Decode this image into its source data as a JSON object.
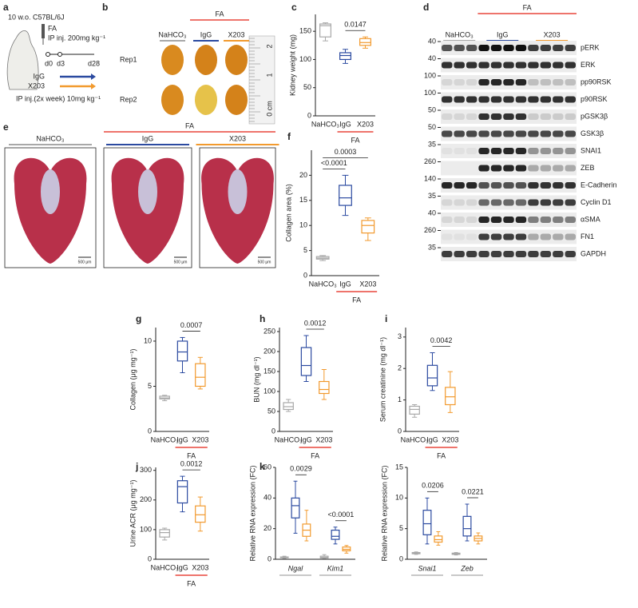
{
  "panel_a": {
    "label": "a",
    "strain": "10 w.o. C57BL/6J",
    "agent": "FA",
    "injection": "IP inj. 200mg kg⁻¹",
    "days": [
      "d0",
      "d3",
      "d28"
    ],
    "treatments": [
      "IgG",
      "X203"
    ],
    "treatment_dose": "IP inj.(2x week) 10mg kg⁻¹"
  },
  "panel_b": {
    "label": "b",
    "groups": [
      "NaHCO₃",
      "IgG",
      "X203"
    ],
    "group_label": "FA",
    "rows": [
      "Rep1",
      "Rep2"
    ],
    "ruler": [
      "2",
      "1",
      "0 cm"
    ]
  },
  "panel_d": {
    "label": "d",
    "groups": [
      "NaHCO₃",
      "IgG",
      "X203"
    ],
    "group_label": "FA",
    "bands": [
      {
        "name": "pERK",
        "mw": 40
      },
      {
        "name": "ERK",
        "mw": 40
      },
      {
        "name": "pp90RSK",
        "mw": 100
      },
      {
        "name": "p90RSK",
        "mw": 100
      },
      {
        "name": "pGSK3β",
        "mw": 50
      },
      {
        "name": "GSK3β",
        "mw": 50
      },
      {
        "name": "SNAI1",
        "mw": 35
      },
      {
        "name": "ZEB",
        "mw": 260
      },
      {
        "name": "E-Cadherin",
        "mw": 140
      },
      {
        "name": "Cyclin D1",
        "mw": 35
      },
      {
        "name": "αSMA",
        "mw": 40
      },
      {
        "name": "FN1",
        "mw": 260
      },
      {
        "name": "GAPDH",
        "mw": 35
      }
    ]
  },
  "panel_e": {
    "label": "e",
    "groups": [
      "NaHCO₃",
      "IgG",
      "X203"
    ],
    "group_label": "FA",
    "scale_bar": "500 μm"
  },
  "chart_data": [
    {
      "type": "box",
      "panel": "c",
      "ylabel": "Kidney weight (mg)",
      "ylim": [
        0,
        180
      ],
      "yticks": [
        0,
        50,
        100,
        150
      ],
      "categories": [
        "NaHCO₃",
        "IgG",
        "X203"
      ],
      "colors": [
        "#a8a8a8",
        "#2b4aa0",
        "#f29a2e"
      ],
      "values": [
        [
          133,
          140,
          160,
          163,
          165
        ],
        [
          93,
          100,
          107,
          112,
          118
        ],
        [
          120,
          125,
          130,
          137,
          140
        ]
      ],
      "pvalues": [
        {
          "label": "0.0147",
          "between": [
            1,
            2
          ]
        }
      ],
      "group_label": "FA"
    },
    {
      "type": "box",
      "panel": "f",
      "ylabel": "Collagen area (%)",
      "ylim": [
        0,
        25
      ],
      "yticks": [
        0,
        5,
        10,
        15,
        20
      ],
      "categories": [
        "NaHCO₃",
        "IgG",
        "X203"
      ],
      "colors": [
        "#a8a8a8",
        "#2b4aa0",
        "#f29a2e"
      ],
      "values": [
        [
          3,
          3.3,
          3.5,
          3.8,
          4
        ],
        [
          12,
          14,
          15.5,
          18,
          20
        ],
        [
          7,
          8.5,
          10,
          11,
          11.5
        ]
      ],
      "pvalues": [
        {
          "label": "<0.0001",
          "between": [
            0,
            1
          ]
        },
        {
          "label": "0.0003",
          "between": [
            0,
            2
          ]
        }
      ],
      "group_label": "FA"
    },
    {
      "type": "box",
      "panel": "g",
      "ylabel": "Collagen (μg mg⁻¹)",
      "ylim": [
        0,
        11.5
      ],
      "yticks": [
        0,
        5,
        10
      ],
      "categories": [
        "NaHCO₃",
        "IgG",
        "X203"
      ],
      "colors": [
        "#a8a8a8",
        "#2b4aa0",
        "#f29a2e"
      ],
      "values": [
        [
          3.4,
          3.6,
          3.7,
          3.9,
          4
        ],
        [
          6.5,
          7.8,
          8.8,
          10,
          10.4
        ],
        [
          4.7,
          5,
          6,
          7.5,
          8.2
        ]
      ],
      "pvalues": [
        {
          "label": "0.0007",
          "between": [
            1,
            2
          ]
        }
      ],
      "group_label": "FA"
    },
    {
      "type": "box",
      "panel": "h",
      "ylabel": "BUN (mg dl⁻¹)",
      "ylim": [
        0,
        260
      ],
      "yticks": [
        0,
        50,
        100,
        150,
        200,
        250
      ],
      "categories": [
        "NaHCO₃",
        "IgG",
        "X203"
      ],
      "colors": [
        "#a8a8a8",
        "#2b4aa0",
        "#f29a2e"
      ],
      "values": [
        [
          50,
          55,
          62,
          72,
          80
        ],
        [
          125,
          140,
          165,
          210,
          240
        ],
        [
          80,
          95,
          105,
          125,
          155
        ]
      ],
      "pvalues": [
        {
          "label": "0.0012",
          "between": [
            1,
            2
          ]
        }
      ],
      "group_label": "FA"
    },
    {
      "type": "box",
      "panel": "i",
      "ylabel": "Serum creatinine (mg dl⁻¹)",
      "ylim": [
        0,
        3.3
      ],
      "yticks": [
        0,
        1,
        2,
        3
      ],
      "categories": [
        "NaHCO₃",
        "IgG",
        "X203"
      ],
      "colors": [
        "#a8a8a8",
        "#2b4aa0",
        "#f29a2e"
      ],
      "values": [
        [
          0.45,
          0.55,
          0.7,
          0.8,
          0.85
        ],
        [
          1.3,
          1.45,
          1.7,
          2.1,
          2.5
        ],
        [
          0.6,
          0.85,
          1.1,
          1.4,
          1.9
        ]
      ],
      "pvalues": [
        {
          "label": "0.0042",
          "between": [
            1,
            2
          ]
        }
      ],
      "group_label": "FA"
    },
    {
      "type": "box",
      "panel": "j",
      "ylabel": "Urine ACR (μg mg⁻¹)",
      "ylim": [
        0,
        310
      ],
      "yticks": [
        0,
        100,
        200,
        300
      ],
      "categories": [
        "NaHCO₃",
        "IgG",
        "X203"
      ],
      "colors": [
        "#a8a8a8",
        "#2b4aa0",
        "#f29a2e"
      ],
      "values": [
        [
          65,
          75,
          90,
          100,
          105
        ],
        [
          160,
          190,
          245,
          265,
          280
        ],
        [
          95,
          125,
          150,
          180,
          210
        ]
      ],
      "pvalues": [
        {
          "label": "0.0012",
          "between": [
            1,
            2
          ]
        }
      ],
      "group_label": "FA"
    },
    {
      "type": "grouped-box",
      "panel": "k",
      "ylabel": "Relative RNA expression (FC)",
      "ylim": [
        0,
        60
      ],
      "yticks": [
        0,
        20,
        40,
        60
      ],
      "categories": [
        "Ngal",
        "Kim1"
      ],
      "series": [
        {
          "color": "#a8a8a8",
          "values": [
            [
              0.5,
              1,
              1.2,
              1.5,
              2
            ],
            [
              0.5,
              0.8,
              1.2,
              2,
              3
            ]
          ]
        },
        {
          "color": "#2b4aa0",
          "values": [
            [
              17,
              27,
              35,
              40,
              51
            ],
            [
              10,
              13,
              15,
              19,
              21
            ]
          ]
        },
        {
          "color": "#f29a2e",
          "values": [
            [
              12,
              15,
              19,
              23,
              32
            ],
            [
              4,
              5.5,
              6.5,
              8,
              9
            ]
          ]
        }
      ],
      "pvalues": [
        "0.0029",
        "<0.0001"
      ]
    },
    {
      "type": "grouped-box",
      "ylabel": "Relative RNA expression (FC)",
      "ylim": [
        0,
        15
      ],
      "yticks": [
        0,
        5,
        10,
        15
      ],
      "categories": [
        "Snai1",
        "Zeb"
      ],
      "series": [
        {
          "color": "#a8a8a8",
          "values": [
            [
              0.8,
              0.9,
              1,
              1.1,
              1.2
            ],
            [
              0.7,
              0.8,
              0.9,
              1,
              1.1
            ]
          ]
        },
        {
          "color": "#2b4aa0",
          "values": [
            [
              2.5,
              4,
              5.8,
              8,
              10
            ],
            [
              3,
              3.8,
              5,
              7,
              9
            ]
          ]
        },
        {
          "color": "#f29a2e",
          "values": [
            [
              2.3,
              2.8,
              3.2,
              3.8,
              4.5
            ],
            [
              2.5,
              3,
              3.4,
              3.8,
              4.3
            ]
          ]
        }
      ],
      "pvalues": [
        "0.0206",
        "0.0221"
      ]
    }
  ]
}
